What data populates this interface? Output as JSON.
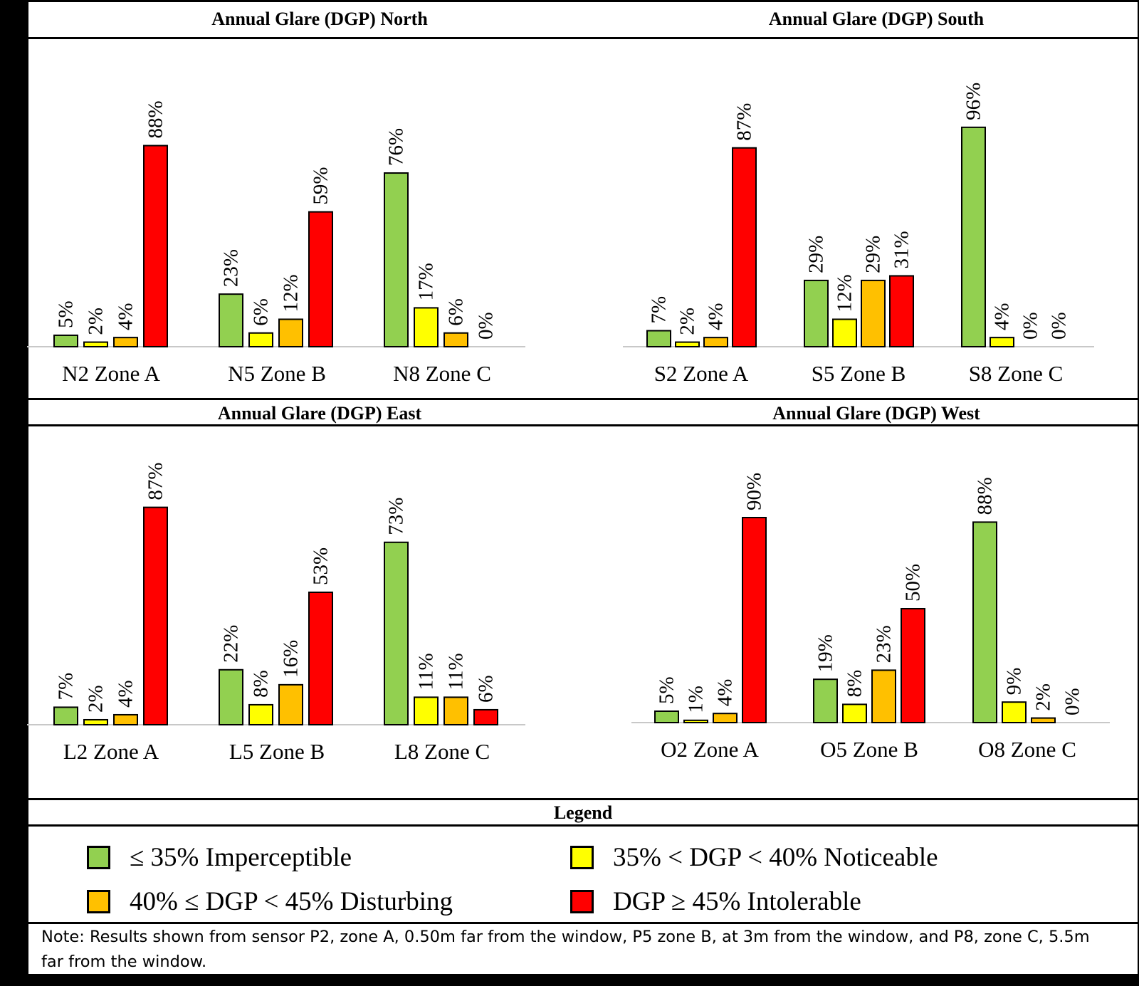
{
  "colors": {
    "imperceptible": "#92D050",
    "noticeable": "#FFFF00",
    "disturbing": "#FFC000",
    "intolerable": "#FF0000"
  },
  "chart_data": [
    {
      "type": "bar",
      "title": "Annual Glare (DGP) North",
      "categories": [
        "N2 Zone A",
        "N5 Zone B",
        "N8 Zone C"
      ],
      "series": [
        {
          "name": "≤ 35% Imperceptible",
          "values": [
            5,
            23,
            76
          ]
        },
        {
          "name": "35% < DGP <  40% Noticeable",
          "values": [
            2,
            6,
            17
          ]
        },
        {
          "name": "40% ≤ DGP < 45% Disturbing",
          "values": [
            4,
            12,
            6
          ]
        },
        {
          "name": "DGP ≥ 45% Intolerable",
          "values": [
            88,
            59,
            0
          ]
        }
      ],
      "ylim": [
        0,
        100
      ],
      "grid": false
    },
    {
      "type": "bar",
      "title": "Annual Glare (DGP) South",
      "categories": [
        "S2 Zone A",
        "S5 Zone B",
        "S8 Zone C"
      ],
      "series": [
        {
          "name": "≤ 35% Imperceptible",
          "values": [
            7,
            29,
            96
          ]
        },
        {
          "name": "35% < DGP <  40% Noticeable",
          "values": [
            2,
            12,
            4
          ]
        },
        {
          "name": "40% ≤ DGP < 45% Disturbing",
          "values": [
            4,
            29,
            0
          ]
        },
        {
          "name": "DGP ≥ 45% Intolerable",
          "values": [
            87,
            31,
            0
          ]
        }
      ],
      "ylim": [
        0,
        100
      ],
      "grid": false
    },
    {
      "type": "bar",
      "title": "Annual Glare (DGP) East",
      "categories": [
        "L2 Zone A",
        "L5 Zone B",
        "L8 Zone C"
      ],
      "series": [
        {
          "name": "≤ 35% Imperceptible",
          "values": [
            7,
            22,
            73
          ]
        },
        {
          "name": "35% < DGP <  40% Noticeable",
          "values": [
            2,
            8,
            11
          ]
        },
        {
          "name": "40% ≤ DGP < 45% Disturbing",
          "values": [
            4,
            16,
            11
          ]
        },
        {
          "name": "DGP ≥ 45% Intolerable",
          "values": [
            87,
            53,
            6
          ]
        }
      ],
      "ylim": [
        0,
        100
      ],
      "grid": false
    },
    {
      "type": "bar",
      "title": "Annual Glare (DGP) West",
      "categories": [
        "O2 Zone A",
        "O5 Zone B",
        "O8 Zone C"
      ],
      "series": [
        {
          "name": "≤ 35% Imperceptible",
          "values": [
            5,
            19,
            88
          ]
        },
        {
          "name": "35% < DGP <  40% Noticeable",
          "values": [
            1,
            8,
            9
          ]
        },
        {
          "name": "40% ≤ DGP < 45% Disturbing",
          "values": [
            4,
            23,
            2
          ]
        },
        {
          "name": "DGP ≥ 45% Intolerable",
          "values": [
            90,
            50,
            0
          ]
        }
      ],
      "ylim": [
        0,
        100
      ],
      "grid": false
    }
  ],
  "legend": {
    "title": "Legend",
    "items": [
      {
        "label": "≤ 35% Imperceptible",
        "color_key": "imperceptible"
      },
      {
        "label": "35% < DGP <  40% Noticeable",
        "color_key": "noticeable"
      },
      {
        "label": "40% ≤ DGP < 45% Disturbing",
        "color_key": "disturbing"
      },
      {
        "label": "DGP ≥ 45% Intolerable",
        "color_key": "intolerable"
      }
    ]
  },
  "note": "Note: Results shown from sensor P2, zone A, 0.50m far from the window, P5 zone B, at 3m from the window, and P8, zone C, 5.5m far from the window."
}
